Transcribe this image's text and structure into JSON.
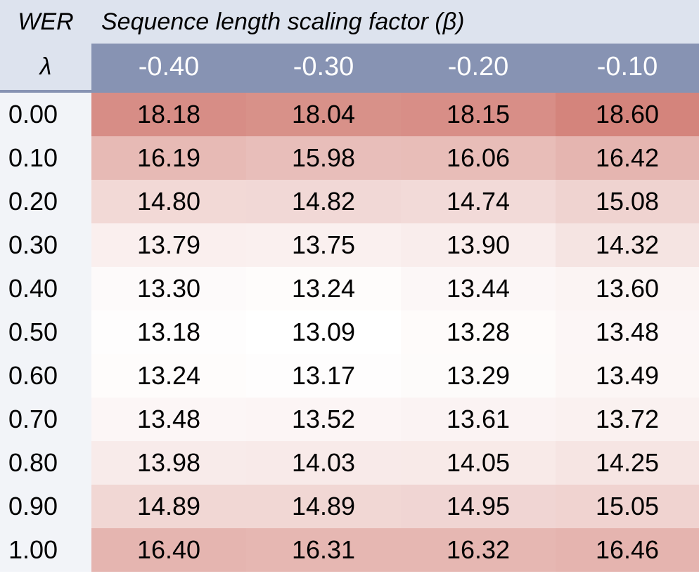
{
  "table": {
    "corner_label": "WER",
    "title": "Sequence length scaling factor (β)",
    "row_header_label": "λ",
    "columns": [
      "-0.40",
      "-0.30",
      "-0.20",
      "-0.10"
    ],
    "rows": [
      "0.00",
      "0.10",
      "0.20",
      "0.30",
      "0.40",
      "0.50",
      "0.60",
      "0.70",
      "0.80",
      "0.90",
      "1.00"
    ],
    "values": [
      [
        "18.18",
        "18.04",
        "18.15",
        "18.60"
      ],
      [
        "16.19",
        "15.98",
        "16.06",
        "16.42"
      ],
      [
        "14.80",
        "14.82",
        "14.74",
        "15.08"
      ],
      [
        "13.79",
        "13.75",
        "13.90",
        "14.32"
      ],
      [
        "13.30",
        "13.24",
        "13.44",
        "13.60"
      ],
      [
        "13.18",
        "13.09",
        "13.28",
        "13.48"
      ],
      [
        "13.24",
        "13.17",
        "13.29",
        "13.49"
      ],
      [
        "13.48",
        "13.52",
        "13.61",
        "13.72"
      ],
      [
        "13.98",
        "14.03",
        "14.05",
        "14.25"
      ],
      [
        "14.89",
        "14.89",
        "14.95",
        "15.05"
      ],
      [
        "16.40",
        "16.31",
        "16.32",
        "16.46"
      ]
    ],
    "colors": {
      "header_light": "#dde3ee",
      "header_dark": "#8793b3",
      "row_header_bg": "#f2f4f8",
      "heat_low": "#ffffff",
      "heat_high": "#d4847c"
    }
  },
  "chart_data": {
    "type": "heatmap",
    "title": "Sequence length scaling factor (β)",
    "xlabel": "Sequence length scaling factor (β)",
    "ylabel": "λ",
    "value_label": "WER",
    "x": [
      -0.4,
      -0.3,
      -0.2,
      -0.1
    ],
    "y": [
      0.0,
      0.1,
      0.2,
      0.3,
      0.4,
      0.5,
      0.6,
      0.7,
      0.8,
      0.9,
      1.0
    ],
    "z": [
      [
        18.18,
        18.04,
        18.15,
        18.6
      ],
      [
        16.19,
        15.98,
        16.06,
        16.42
      ],
      [
        14.8,
        14.82,
        14.74,
        15.08
      ],
      [
        13.79,
        13.75,
        13.9,
        14.32
      ],
      [
        13.3,
        13.24,
        13.44,
        13.6
      ],
      [
        13.18,
        13.09,
        13.28,
        13.48
      ],
      [
        13.24,
        13.17,
        13.29,
        13.49
      ],
      [
        13.48,
        13.52,
        13.61,
        13.72
      ],
      [
        13.98,
        14.03,
        14.05,
        14.25
      ],
      [
        14.89,
        14.89,
        14.95,
        15.05
      ],
      [
        16.4,
        16.31,
        16.32,
        16.46
      ]
    ],
    "colorscale": [
      "#ffffff",
      "#d4847c"
    ]
  }
}
